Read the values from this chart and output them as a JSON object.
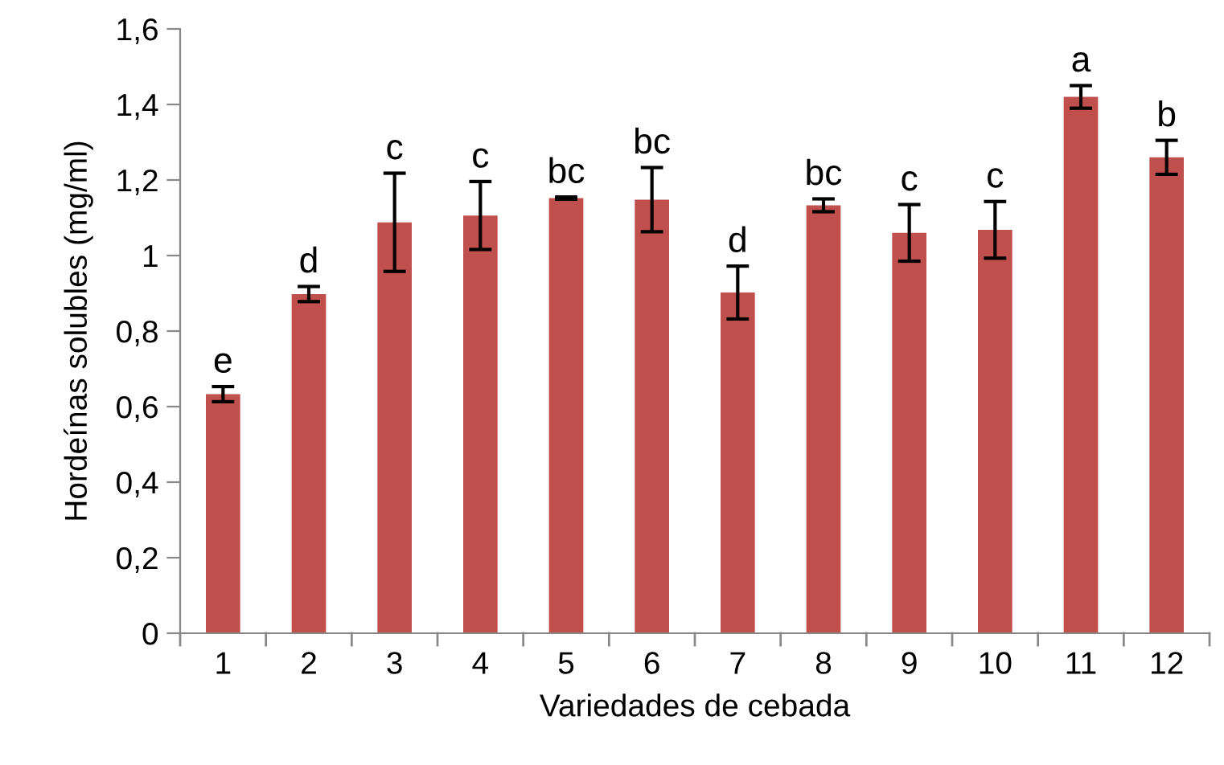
{
  "chart_data": {
    "type": "bar",
    "xlabel": "Variedades de cebada",
    "ylabel": "Hordeínas solubles (mg/ml)",
    "categories": [
      "1",
      "2",
      "3",
      "4",
      "5",
      "6",
      "7",
      "8",
      "9",
      "10",
      "11",
      "12"
    ],
    "values": [
      0.633,
      0.898,
      1.088,
      1.106,
      1.152,
      1.148,
      0.902,
      1.133,
      1.06,
      1.068,
      1.42,
      1.26
    ],
    "errors": [
      0.02,
      0.02,
      0.13,
      0.09,
      0.003,
      0.085,
      0.07,
      0.017,
      0.075,
      0.075,
      0.03,
      0.045
    ],
    "color": "#c0504d",
    "ylim": [
      0,
      1.6
    ],
    "yticks": [
      {
        "value": 0,
        "label": "0"
      },
      {
        "value": 0.2,
        "label": "0,2"
      },
      {
        "value": 0.4,
        "label": "0,4"
      },
      {
        "value": 0.6,
        "label": "0,6"
      },
      {
        "value": 0.8,
        "label": "0,8"
      },
      {
        "value": 1,
        "label": "1"
      },
      {
        "value": 1.2,
        "label": "1,2"
      },
      {
        "value": 1.4,
        "label": "1,4"
      },
      {
        "value": 1.6,
        "label": "1,6"
      }
    ],
    "grid": false,
    "annotations": [
      {
        "text": "e",
        "x": "1",
        "y": 0.653
      },
      {
        "text": "d",
        "x": "2",
        "y": 0.918
      },
      {
        "text": "c",
        "x": "3",
        "y": 1.218
      },
      {
        "text": "c",
        "x": "4",
        "y": 1.196
      },
      {
        "text": "bc",
        "x": "5",
        "y": 1.155
      },
      {
        "text": "bc",
        "x": "6",
        "y": 1.233
      },
      {
        "text": "d",
        "x": "7",
        "y": 0.972
      },
      {
        "text": "bc",
        "x": "8",
        "y": 1.15
      },
      {
        "text": "c",
        "x": "9",
        "y": 1.135
      },
      {
        "text": "c",
        "x": "10",
        "y": 1.143
      },
      {
        "text": "a",
        "x": "11",
        "y": 1.45
      },
      {
        "text": "b",
        "x": "12",
        "y": 1.305
      }
    ]
  }
}
